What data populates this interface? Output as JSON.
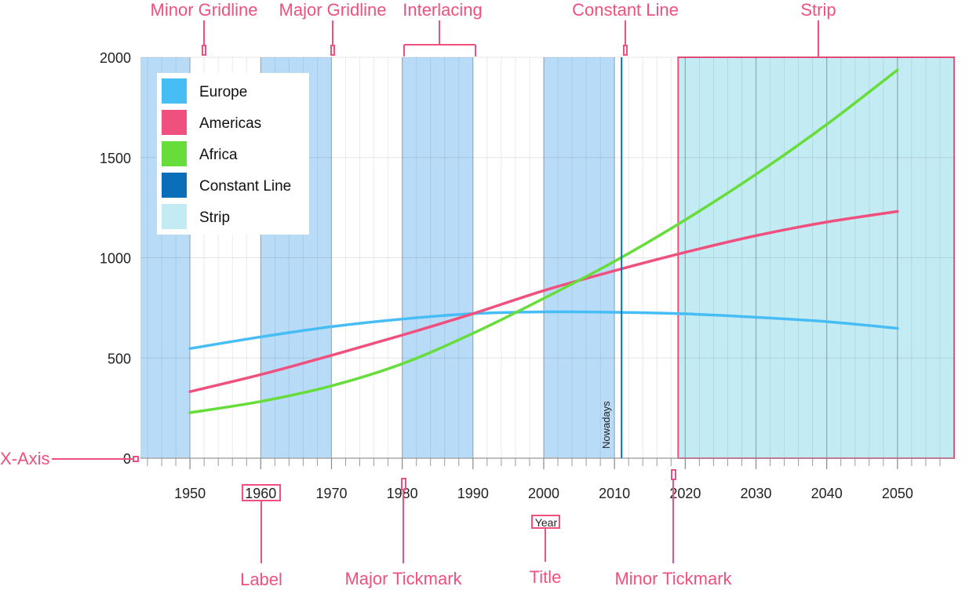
{
  "chart_data": {
    "type": "line",
    "title": "",
    "xlabel": "Year",
    "ylabel": "",
    "xlim": [
      1943,
      2058
    ],
    "ylim": [
      0,
      2000
    ],
    "x_ticks": [
      1950,
      1960,
      1970,
      1980,
      1990,
      2000,
      2010,
      2020,
      2030,
      2040,
      2050
    ],
    "y_ticks": [
      0,
      500,
      1000,
      1500,
      2000
    ],
    "grid": true,
    "legend_position": "top-left",
    "x": [
      1950,
      1960,
      1970,
      1980,
      1990,
      2000,
      2010,
      2020,
      2030,
      2040,
      2050
    ],
    "series": [
      {
        "name": "Europe",
        "color": "#47bdf5",
        "values": [
          547,
          605,
          656,
          694,
          721,
          730,
          728,
          720,
          703,
          681,
          648
        ]
      },
      {
        "name": "Americas",
        "color": "#f0507e",
        "values": [
          332,
          417,
          513,
          614,
          721,
          836,
          935,
          1027,
          1110,
          1178,
          1231
        ]
      },
      {
        "name": "Africa",
        "color": "#66dd3a",
        "values": [
          227,
          283,
          361,
          471,
          623,
          797,
          982,
          1189,
          1416,
          1665,
          1937
        ]
      }
    ],
    "interlacing": {
      "name": "Interlacing",
      "color": "#b8dcf8",
      "bands": [
        [
          1940,
          1950
        ],
        [
          1960,
          1970
        ],
        [
          1980,
          1990
        ],
        [
          2000,
          2010
        ]
      ]
    },
    "constant_line": {
      "name": "Constant Line",
      "value": 2011,
      "label": "Nowadays",
      "color": "#0a6fb8"
    },
    "strip": {
      "name": "Strip",
      "range": [
        2019,
        2058
      ],
      "color": "#c3ebf3"
    },
    "legend": [
      {
        "label": "Europe",
        "color": "#47bdf5"
      },
      {
        "label": "Americas",
        "color": "#f0507e"
      },
      {
        "label": "Africa",
        "color": "#66dd3a"
      },
      {
        "label": "Constant Line",
        "color": "#0a6fb8"
      },
      {
        "label": "Strip",
        "color": "#c3ebf3"
      }
    ],
    "callouts": [
      {
        "id": "minor-gridline",
        "text": "Minor Gridline"
      },
      {
        "id": "major-gridline",
        "text": "Major Gridline"
      },
      {
        "id": "interlacing",
        "text": "Interlacing"
      },
      {
        "id": "constant-line",
        "text": "Constant Line"
      },
      {
        "id": "strip",
        "text": "Strip"
      },
      {
        "id": "x-axis",
        "text": "X-Axis"
      },
      {
        "id": "label",
        "text": "Label"
      },
      {
        "id": "major-tickmark",
        "text": "Major Tickmark"
      },
      {
        "id": "title",
        "text": "Title"
      },
      {
        "id": "minor-tickmark",
        "text": "Minor Tickmark"
      }
    ],
    "callout_color": "#f0507e"
  }
}
